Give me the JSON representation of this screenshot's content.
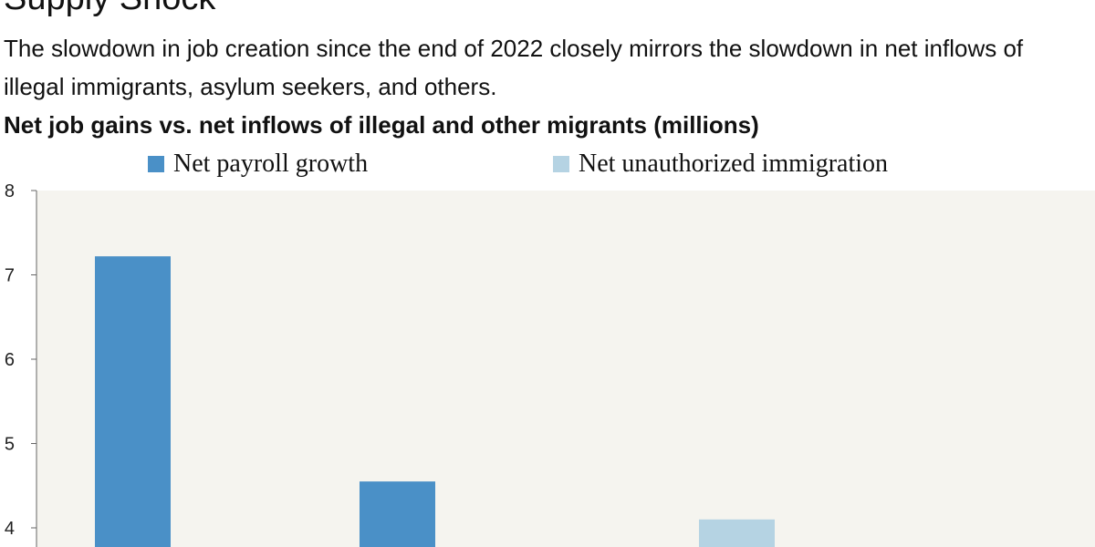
{
  "header": {
    "title": "Supply Shock",
    "subtitle": "The slowdown in job creation since the end of 2022 closely mirrors the slowdown in net inflows of illegal immigrants, asylum seekers, and others."
  },
  "chart_data": {
    "type": "bar",
    "title": "Net job gains vs. net inflows of illegal and other migrants (millions)",
    "xlabel": "",
    "ylabel": "",
    "ylim": [
      3.8,
      8
    ],
    "yticks": [
      4,
      5,
      6,
      7,
      8
    ],
    "grid": false,
    "legend_position": "top",
    "series": [
      {
        "name": "Net payroll growth",
        "color": "#4a90c7",
        "values": [
          7.22,
          4.55,
          null
        ]
      },
      {
        "name": "Net unauthorized immigration",
        "color": "#b5d3e3",
        "values": [
          null,
          null,
          4.1
        ]
      }
    ],
    "bar_groups": [
      {
        "series_index": 0,
        "value_index": 0
      },
      {
        "series_index": 0,
        "value_index": 1
      },
      {
        "series_index": 1,
        "value_index": 2
      }
    ],
    "plot_background": "#f5f4ef"
  }
}
